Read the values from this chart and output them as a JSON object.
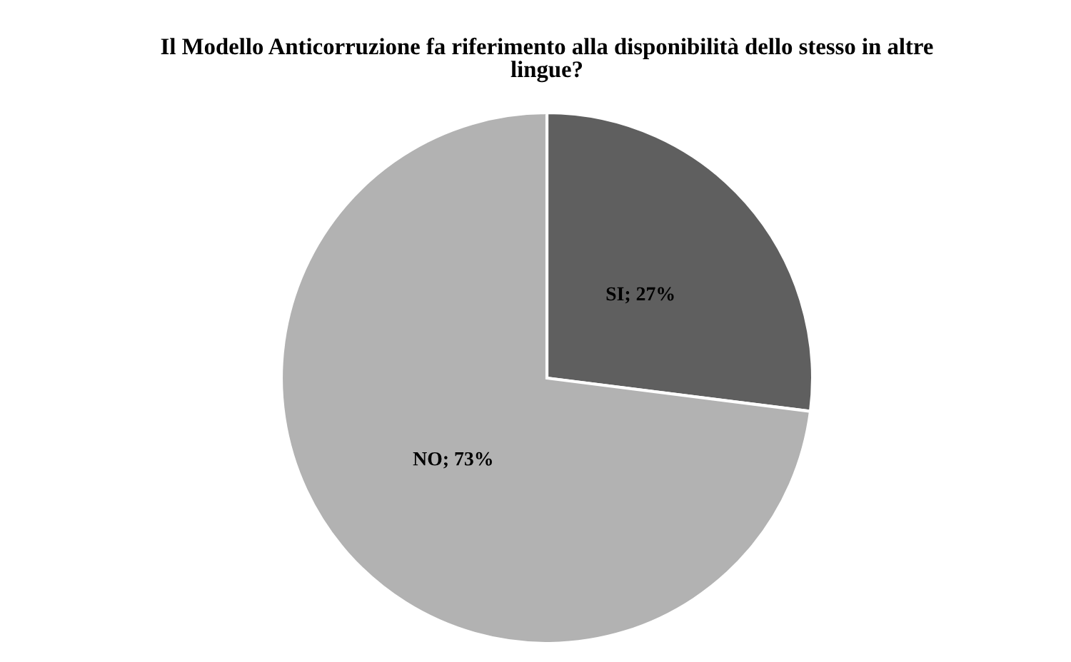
{
  "chart_data": {
    "type": "pie",
    "title": "Il Modello Anticorruzione fa riferimento alla disponibilità dello stesso in altre lingue?",
    "categories": [
      "SI",
      "NO"
    ],
    "values": [
      27,
      73
    ],
    "colors": [
      "#5f5f5f",
      "#b2b2b2"
    ],
    "value_labels": [
      "27%",
      "73%"
    ]
  }
}
